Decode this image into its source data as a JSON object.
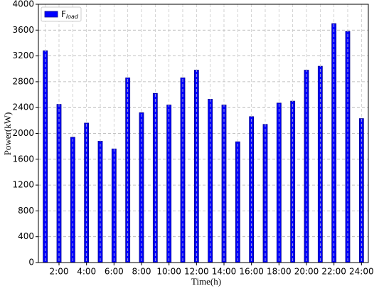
{
  "chart_data": {
    "type": "bar",
    "categories": [
      null,
      "2:00",
      null,
      "4:00",
      null,
      "6:00",
      null,
      "8:00",
      null,
      "10:00",
      null,
      "12:00",
      null,
      "14:00",
      null,
      "16:00",
      null,
      "18:00",
      null,
      "20:00",
      null,
      "22:00",
      null,
      "24:00"
    ],
    "series": [
      {
        "name": "F",
        "name_sub": "load",
        "color": "#0000ff",
        "edgecolor": "#00008b",
        "values": [
          3280,
          2450,
          1940,
          2160,
          1880,
          1760,
          2860,
          2320,
          2620,
          2440,
          2860,
          2980,
          2530,
          2440,
          1870,
          2260,
          2140,
          2470,
          2500,
          2980,
          3040,
          3700,
          3580,
          2230
        ]
      }
    ],
    "xlabel": "Time(h)",
    "ylabel": "Power(kW)",
    "ylim": [
      0,
      4000
    ],
    "yticks": [
      0,
      400,
      800,
      1200,
      1600,
      2000,
      2400,
      2800,
      3200,
      3600,
      4000
    ],
    "grid": true,
    "legend": "upper left"
  }
}
